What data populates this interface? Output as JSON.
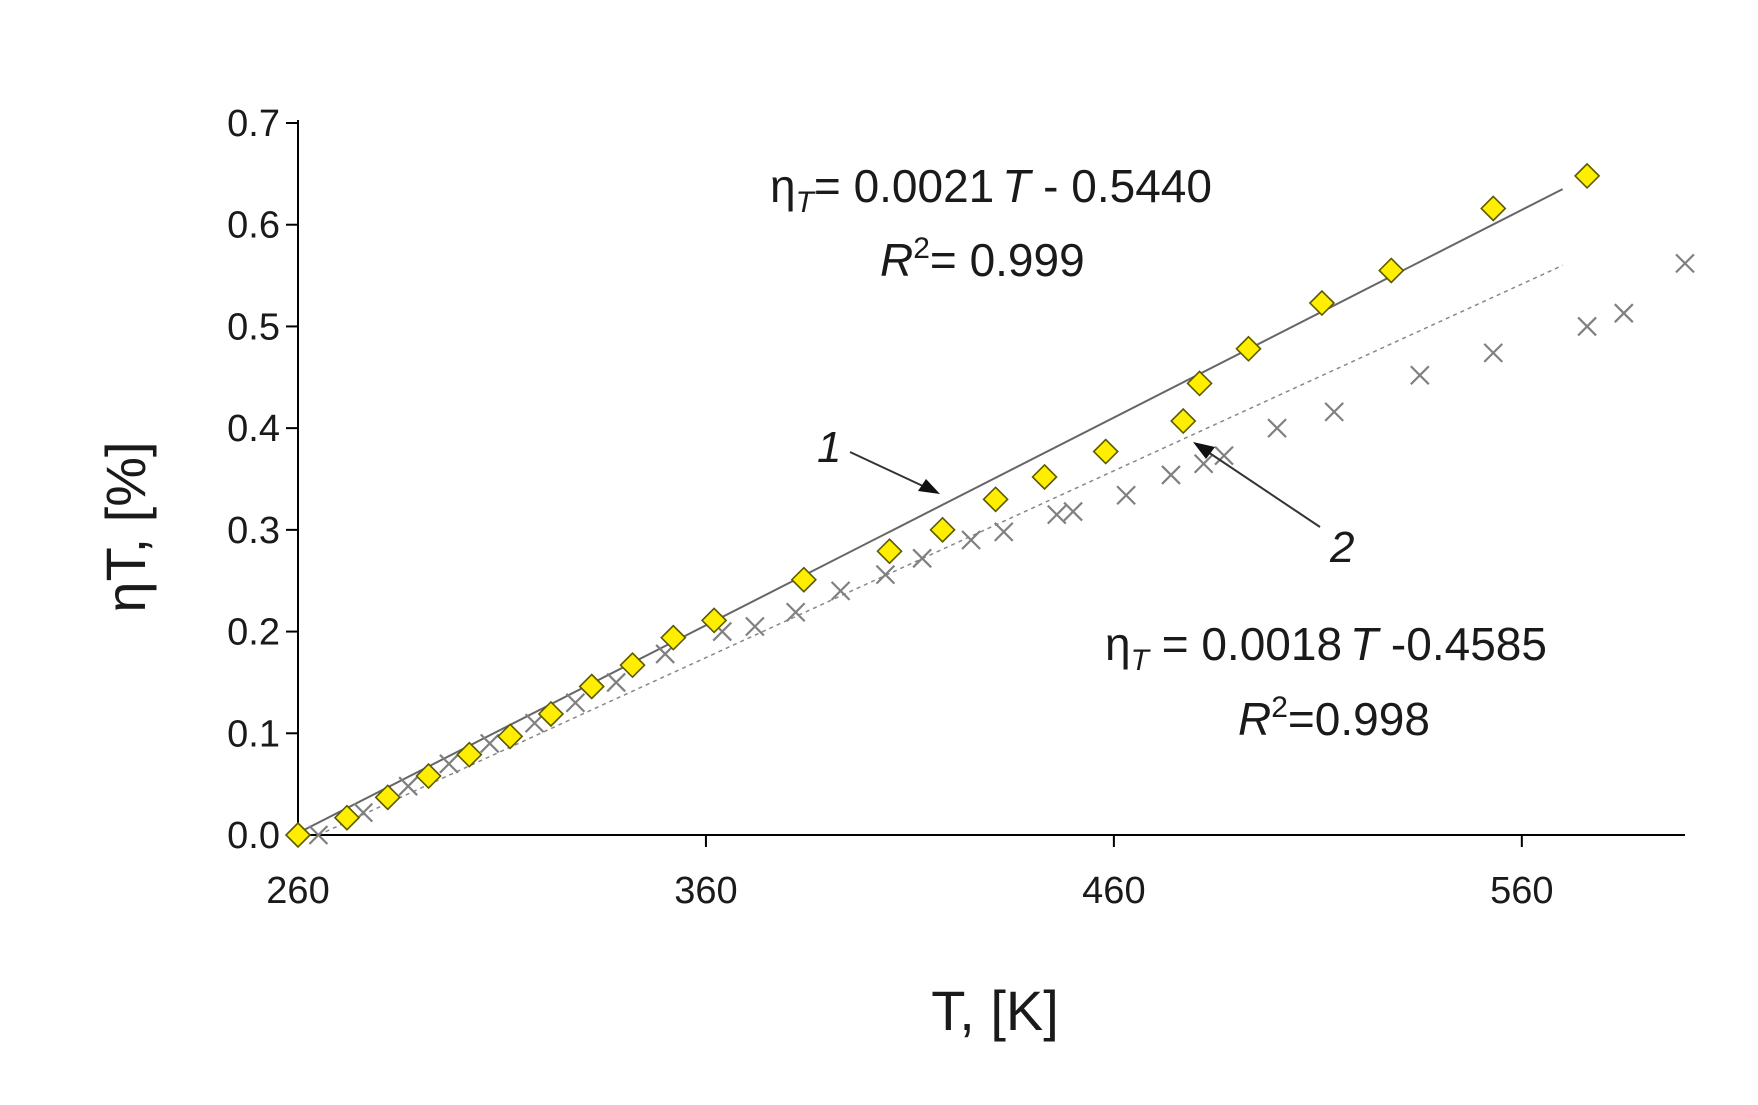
{
  "chart_data": {
    "type": "scatter",
    "xlabel": "T, [K]",
    "ylabel": "ηT, [%]",
    "xlim": [
      260,
      600
    ],
    "ylim": [
      0,
      0.7
    ],
    "xticks": [
      260,
      360,
      460,
      560
    ],
    "yticks": [
      "0.0",
      "0.1",
      "0.2",
      "0.3",
      "0.4",
      "0.5",
      "0.6",
      "0.7"
    ],
    "grid": false,
    "series": [
      {
        "marker": "diamond",
        "label": "1",
        "color": "#ffee00",
        "trendline": {
          "style": "solid",
          "x": [
            260,
            570
          ],
          "y": [
            0.002,
            0.635
          ]
        },
        "equation": {
          "lhs": "η",
          "sub": "T",
          "rhs1": "= 0.0021",
          "var": "T",
          "rhs2": " - 0.5440"
        },
        "r2": {
          "sym": "R",
          "sup": "2",
          "value": "= 0.999"
        },
        "points": [
          [
            260,
            0.0
          ],
          [
            272,
            0.017
          ],
          [
            282,
            0.037
          ],
          [
            292,
            0.058
          ],
          [
            302,
            0.079
          ],
          [
            312,
            0.097
          ],
          [
            322,
            0.119
          ],
          [
            332,
            0.146
          ],
          [
            342,
            0.167
          ],
          [
            352,
            0.194
          ],
          [
            362,
            0.211
          ],
          [
            384,
            0.251
          ],
          [
            405,
            0.279
          ],
          [
            418,
            0.3
          ],
          [
            431,
            0.33
          ],
          [
            443,
            0.352
          ],
          [
            458,
            0.377
          ],
          [
            477,
            0.407
          ],
          [
            481,
            0.444
          ],
          [
            493,
            0.478
          ],
          [
            511,
            0.523
          ],
          [
            528,
            0.555
          ],
          [
            553,
            0.616
          ],
          [
            576,
            0.648
          ]
        ]
      },
      {
        "marker": "x",
        "label": "2",
        "color": "#808080",
        "trendline": {
          "style": "dotted",
          "x": [
            265,
            570
          ],
          "y": [
            0.0,
            0.56
          ]
        },
        "equation": {
          "lhs": "η",
          "sub": "T",
          "rhs1": " = 0.0018",
          "var": "T",
          "rhs2": " -0.4585"
        },
        "r2": {
          "sym": "R",
          "sup": "2",
          "value": "=0.998"
        },
        "points": [
          [
            265,
            0.0
          ],
          [
            276,
            0.022
          ],
          [
            287,
            0.048
          ],
          [
            297,
            0.07
          ],
          [
            307,
            0.09
          ],
          [
            318,
            0.11
          ],
          [
            328,
            0.13
          ],
          [
            338,
            0.15
          ],
          [
            350,
            0.178
          ],
          [
            364,
            0.2
          ],
          [
            372,
            0.205
          ],
          [
            382,
            0.219
          ],
          [
            393,
            0.24
          ],
          [
            404,
            0.256
          ],
          [
            413,
            0.272
          ],
          [
            425,
            0.29
          ],
          [
            433,
            0.298
          ],
          [
            446,
            0.315
          ],
          [
            450,
            0.318
          ],
          [
            463,
            0.334
          ],
          [
            474,
            0.354
          ],
          [
            482,
            0.365
          ],
          [
            487,
            0.373
          ],
          [
            500,
            0.4
          ],
          [
            514,
            0.416
          ],
          [
            535,
            0.452
          ],
          [
            553,
            0.474
          ],
          [
            576,
            0.5
          ],
          [
            585,
            0.513
          ],
          [
            600,
            0.562
          ]
        ]
      }
    ]
  }
}
